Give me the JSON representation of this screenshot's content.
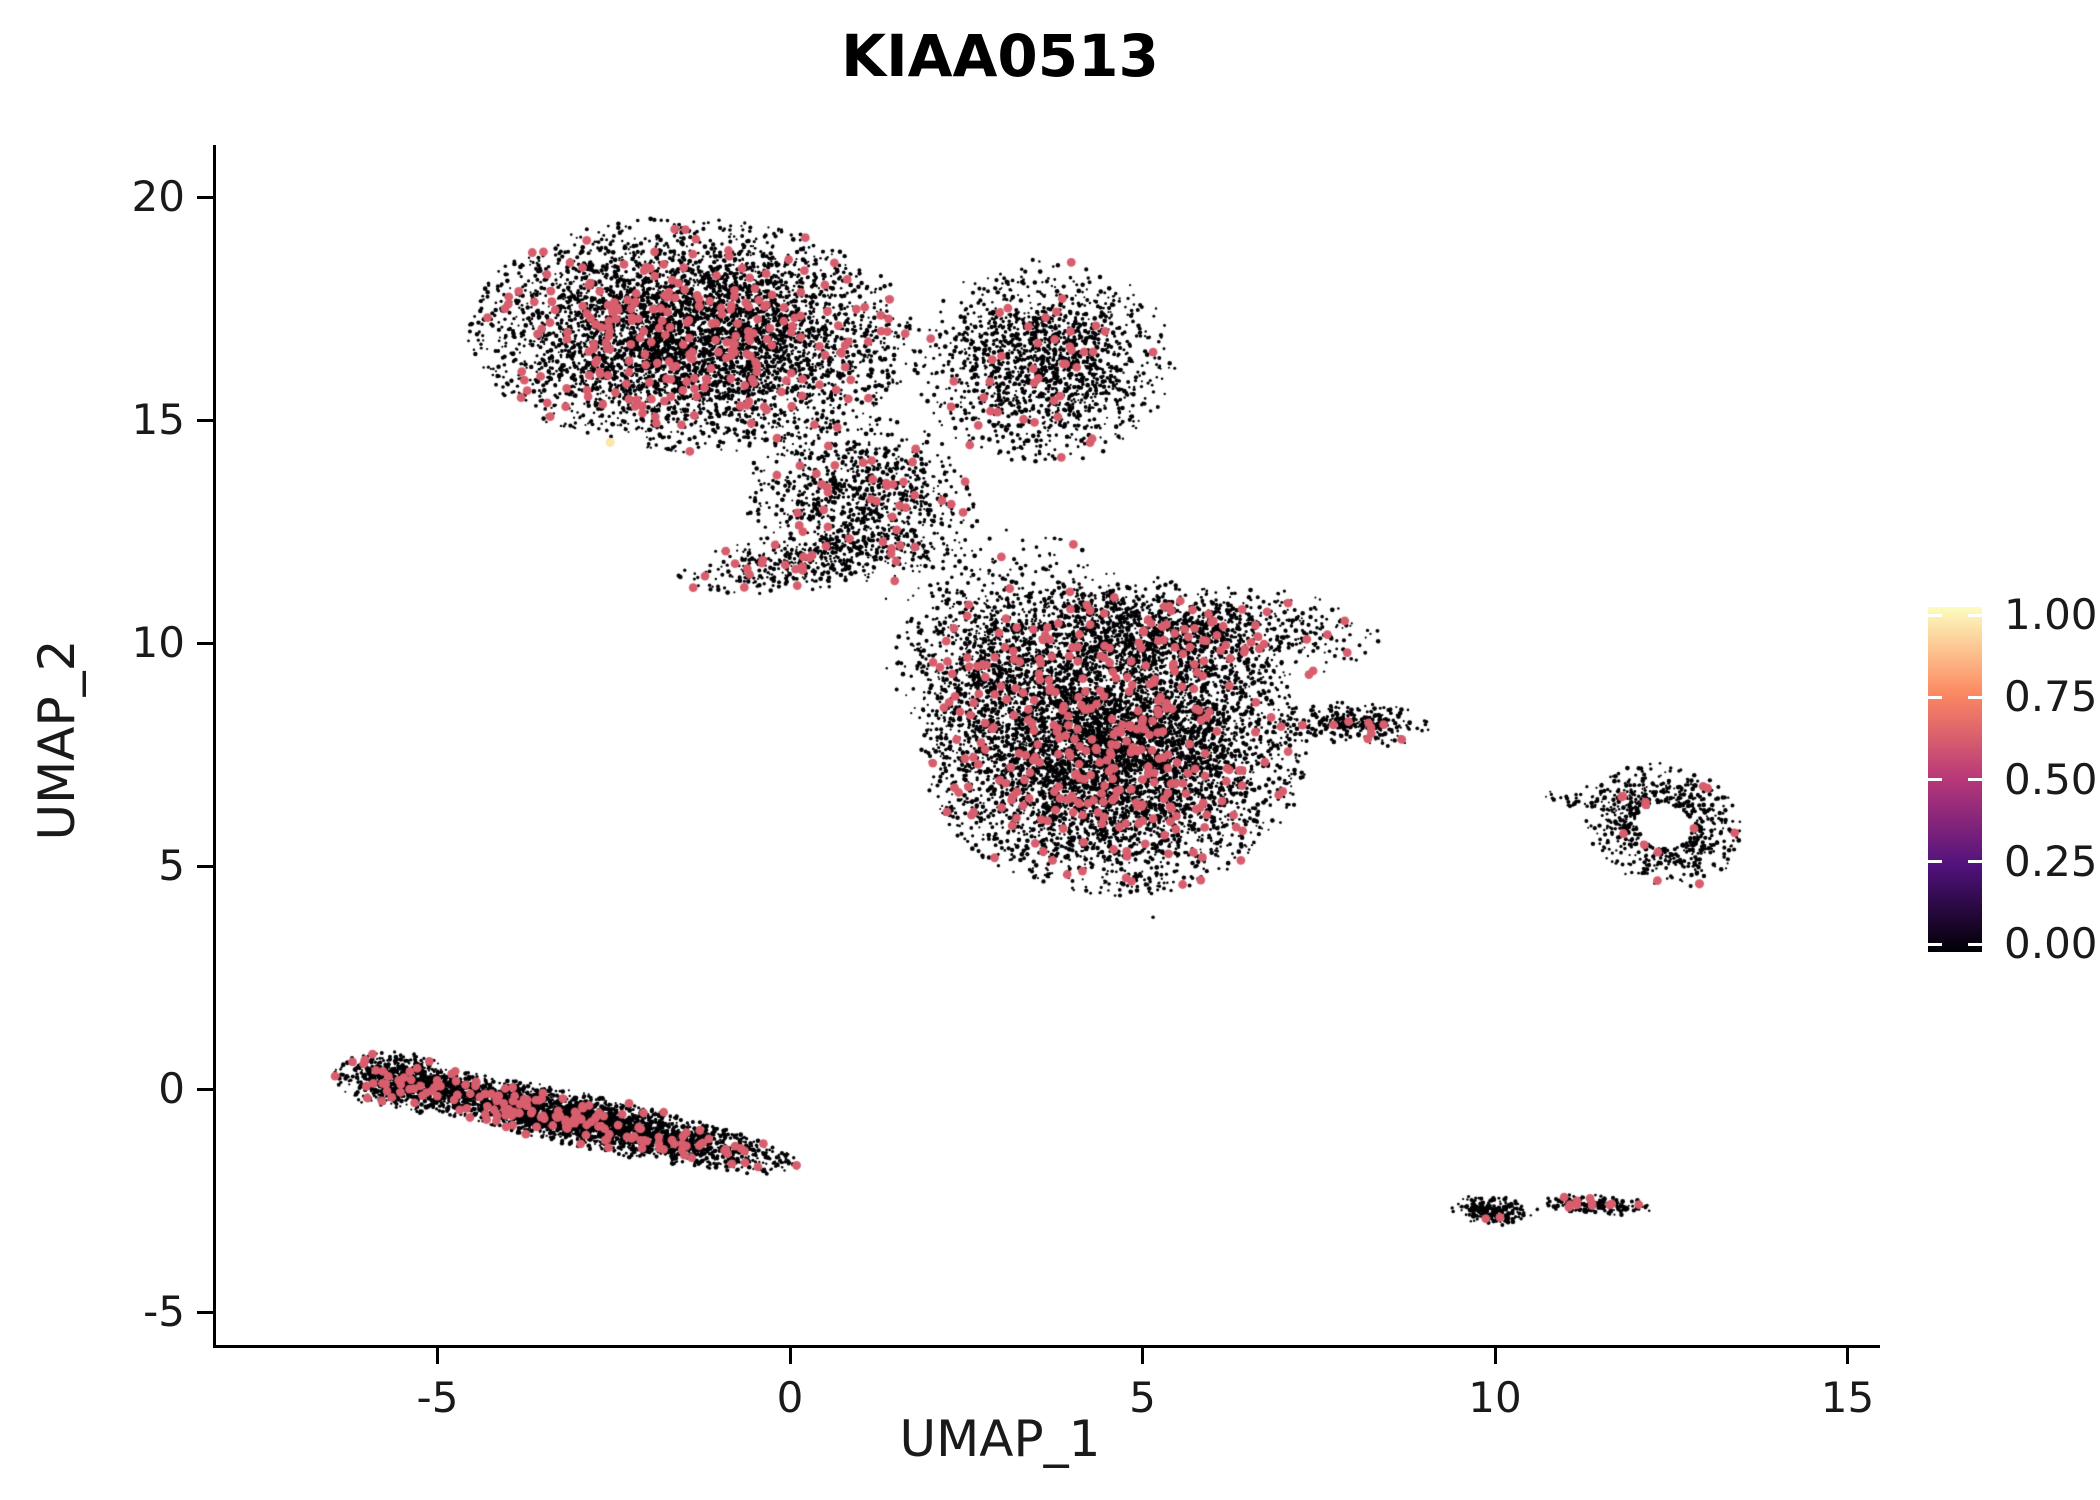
{
  "chart_data": {
    "type": "scatter",
    "title": "KIAA0513",
    "xlabel": "UMAP_1",
    "ylabel": "UMAP_2",
    "xlim": [
      -8.2,
      16.5
    ],
    "ylim": [
      -5.6,
      21.2
    ],
    "grid": false,
    "legend_position": "right",
    "x_ticks": [
      {
        "value": -5,
        "label": "-5"
      },
      {
        "value": 0,
        "label": "0"
      },
      {
        "value": 5,
        "label": "5"
      },
      {
        "value": 10,
        "label": "10"
      },
      {
        "value": 15,
        "label": "15"
      }
    ],
    "y_ticks": [
      {
        "value": 20,
        "label": "20"
      },
      {
        "value": 15,
        "label": "15"
      },
      {
        "value": 10,
        "label": "10"
      },
      {
        "value": 5,
        "label": "5"
      },
      {
        "value": 0,
        "label": "0"
      },
      {
        "value": -5,
        "label": "-5"
      }
    ],
    "legend": {
      "ticks": [
        {
          "value": 1.0,
          "label": "1.00"
        },
        {
          "value": 0.75,
          "label": "0.75"
        },
        {
          "value": 0.5,
          "label": "0.50"
        },
        {
          "value": 0.25,
          "label": "0.25"
        },
        {
          "value": 0.0,
          "label": "0.00"
        }
      ],
      "colormap_stops": [
        [
          0.0,
          "#000004"
        ],
        [
          0.25,
          "#51127c"
        ],
        [
          0.5,
          "#b73779"
        ],
        [
          0.75,
          "#fc8961"
        ],
        [
          1.0,
          "#fcfdbf"
        ]
      ]
    },
    "point_value_black": 0.0,
    "point_value_pink": 0.62,
    "seed": 42,
    "clusters": [
      {
        "name": "upper-main",
        "cx": -1.4,
        "cy": 16.9,
        "sx": 1.45,
        "sy": 1.2,
        "rot": -5,
        "n": 5200,
        "pink_frac": 0.05
      },
      {
        "name": "upper-right-lobe",
        "cx": 3.6,
        "cy": 16.3,
        "sx": 0.85,
        "sy": 1.05,
        "rot": 0,
        "n": 1600,
        "pink_frac": 0.025
      },
      {
        "name": "upper-lower-bridge",
        "cx": 1.0,
        "cy": 13.3,
        "sx": 0.75,
        "sy": 0.85,
        "rot": 25,
        "n": 900,
        "pink_frac": 0.03
      },
      {
        "name": "upper-strand",
        "cx": 0.3,
        "cy": 11.85,
        "sx": 0.9,
        "sy": 0.3,
        "rot": 12,
        "n": 420,
        "pink_frac": 0.05
      },
      {
        "name": "mid-main",
        "cx": 4.6,
        "cy": 7.6,
        "sx": 1.25,
        "sy": 1.5,
        "rot": 0,
        "n": 6400,
        "pink_frac": 0.04
      },
      {
        "name": "mid-upper-band",
        "cx": 5.2,
        "cy": 10.3,
        "sx": 1.45,
        "sy": 0.55,
        "rot": -4,
        "n": 1400,
        "pink_frac": 0.045
      },
      {
        "name": "mid-left",
        "cx": 2.7,
        "cy": 9.3,
        "sx": 0.6,
        "sy": 1.0,
        "rot": 10,
        "n": 650,
        "pink_frac": 0.03
      },
      {
        "name": "mid-right-tail",
        "cx": 8.0,
        "cy": 8.2,
        "sx": 0.5,
        "sy": 0.25,
        "rot": -3,
        "n": 280,
        "pink_frac": 0.02
      },
      {
        "name": "bridge-sparse",
        "cx": 2.9,
        "cy": 11.5,
        "sx": 1.1,
        "sy": 0.55,
        "rot": -15,
        "n": 170,
        "pink_frac": 0.02
      },
      {
        "name": "right-ring",
        "cx": 12.4,
        "cy": 5.9,
        "sx": 0.5,
        "sy": 0.65,
        "rot": 15,
        "n": 620,
        "pink_frac": 0.012,
        "hole": 0.35
      },
      {
        "name": "right-ring-left-wisp",
        "cx": 11.5,
        "cy": 6.45,
        "sx": 0.4,
        "sy": 0.15,
        "rot": -8,
        "n": 55,
        "pink_frac": 0.04
      },
      {
        "name": "lower-band",
        "cx": -2.95,
        "cy": -0.7,
        "sx": 1.5,
        "sy": 0.27,
        "rot": -19,
        "n": 3300,
        "pink_frac": 0.05
      },
      {
        "name": "lower-band-head",
        "cx": -5.5,
        "cy": 0.15,
        "sx": 0.45,
        "sy": 0.3,
        "rot": -15,
        "n": 700,
        "pink_frac": 0.04
      },
      {
        "name": "tiny-left",
        "cx": 9.95,
        "cy": -2.72,
        "sx": 0.26,
        "sy": 0.15,
        "rot": -10,
        "n": 230,
        "pink_frac": 0.008
      },
      {
        "name": "tiny-right",
        "cx": 11.45,
        "cy": -2.6,
        "sx": 0.36,
        "sy": 0.1,
        "rot": -5,
        "n": 180,
        "pink_frac": 0.05
      }
    ],
    "outliers": [
      [
        5.15,
        3.85
      ],
      [
        9.0,
        8.25
      ],
      [
        2.05,
        12.85
      ],
      [
        2.6,
        13.05
      ],
      [
        1.35,
        12.4
      ],
      [
        3.3,
        12.3
      ],
      [
        0.1,
        12.6
      ],
      [
        -0.6,
        12.9
      ],
      [
        10.6,
        -2.7
      ],
      [
        13.25,
        5.2
      ],
      [
        11.15,
        6.6
      ]
    ],
    "highlight_points": [
      {
        "x": 12.9,
        "y": 4.6,
        "v": 0.62
      },
      {
        "x": 11.8,
        "y": 6.55,
        "v": 0.62
      },
      {
        "x": -2.55,
        "y": 14.5,
        "v": 0.95
      }
    ]
  },
  "colors": {
    "background": "#ffffff",
    "axis": "#000000",
    "text": "#1a1a1a"
  }
}
